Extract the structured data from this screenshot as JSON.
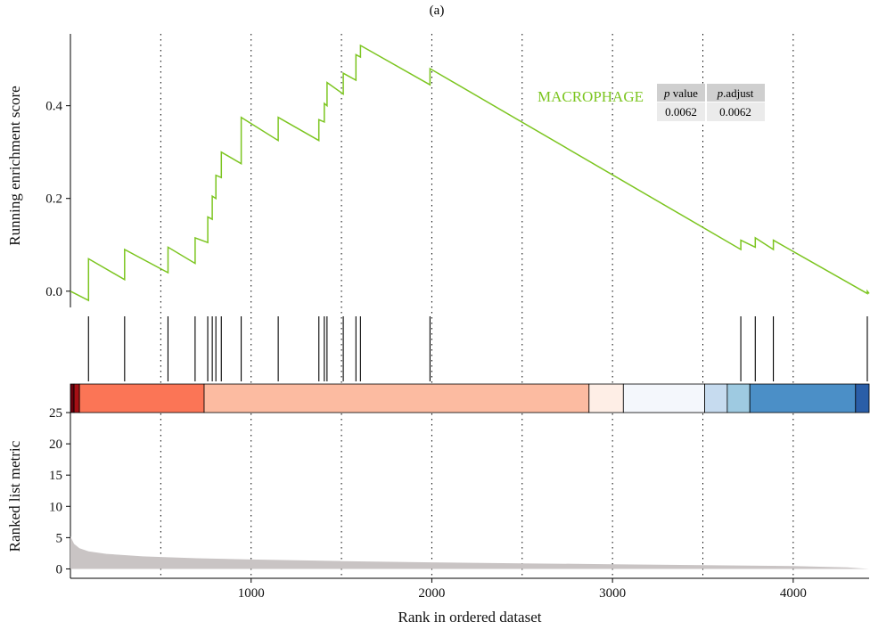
{
  "panel_label": "(a)",
  "colors": {
    "es_line": "#7CC520",
    "metric_area": "#C9C4C4",
    "heat_0": "#67000D",
    "heat_1": "#A50F15",
    "heat_2": "#FB7556",
    "heat_3": "#FCBBA1",
    "heat_4": "#FEEEE6",
    "heat_5": "#F4F7FC",
    "heat_6": "#C6DBEF",
    "heat_7": "#9ECAE1",
    "heat_8": "#4B8FC7",
    "heat_9": "#2A5EA8"
  },
  "chart_data": [
    {
      "type": "line",
      "ylabel": "Running enrichment score",
      "ylim": [
        -0.035,
        0.555
      ],
      "yticks": [
        0.0,
        0.2,
        0.4
      ],
      "ytick_labels": [
        "0.0",
        "0.2",
        "0.4"
      ],
      "xlim": [
        0,
        4420
      ],
      "vertical_dotted_lines_at": [
        500,
        1000,
        1500,
        2000,
        2500,
        3000,
        3500,
        4000
      ],
      "series": [
        {
          "name": "MACROPHAGE",
          "x": [
            0,
            100,
            100,
            300,
            300,
            540,
            540,
            690,
            690,
            760,
            760,
            785,
            785,
            805,
            805,
            835,
            835,
            945,
            945,
            1150,
            1150,
            1375,
            1375,
            1405,
            1405,
            1420,
            1420,
            1510,
            1510,
            1580,
            1580,
            1605,
            1605,
            1990,
            1990,
            3710,
            3710,
            3790,
            3790,
            3890,
            3890,
            4410,
            4410,
            4420
          ],
          "y": [
            0.0,
            -0.02,
            0.07,
            0.025,
            0.09,
            0.04,
            0.095,
            0.06,
            0.115,
            0.105,
            0.16,
            0.155,
            0.205,
            0.2,
            0.25,
            0.245,
            0.3,
            0.275,
            0.375,
            0.325,
            0.375,
            0.325,
            0.37,
            0.365,
            0.405,
            0.4,
            0.45,
            0.425,
            0.47,
            0.455,
            0.51,
            0.505,
            0.53,
            0.445,
            0.48,
            0.09,
            0.11,
            0.095,
            0.115,
            0.09,
            0.11,
            -0.005,
            0.0,
            -0.005
          ]
        }
      ],
      "gene_set_label": "MACROPHAGE",
      "stats_table": {
        "headers": [
          "p value",
          "p.adjust"
        ],
        "header_italic_prefix": "p",
        "values": [
          "0.0062",
          "0.0062"
        ]
      }
    },
    {
      "type": "rug",
      "description_hit_positions": "gene-set hit ranks",
      "hits": [
        100,
        300,
        540,
        690,
        760,
        785,
        805,
        835,
        945,
        1150,
        1375,
        1405,
        1420,
        1510,
        1580,
        1605,
        1990,
        3710,
        3790,
        3890,
        4410
      ]
    },
    {
      "type": "heatmap",
      "segments": [
        {
          "from": 0,
          "to": 20,
          "color_key": "heat_0"
        },
        {
          "from": 20,
          "to": 50,
          "color_key": "heat_1"
        },
        {
          "from": 50,
          "to": 740,
          "color_key": "heat_2"
        },
        {
          "from": 740,
          "to": 2870,
          "color_key": "heat_3"
        },
        {
          "from": 2870,
          "to": 3060,
          "color_key": "heat_4"
        },
        {
          "from": 3060,
          "to": 3510,
          "color_key": "heat_5"
        },
        {
          "from": 3510,
          "to": 3635,
          "color_key": "heat_6"
        },
        {
          "from": 3635,
          "to": 3760,
          "color_key": "heat_7"
        },
        {
          "from": 3760,
          "to": 4345,
          "color_key": "heat_8"
        },
        {
          "from": 4345,
          "to": 4420,
          "color_key": "heat_9"
        }
      ]
    },
    {
      "type": "area",
      "xlabel": "Rank in ordered dataset",
      "ylabel": "Ranked list metric",
      "xlim": [
        0,
        4420
      ],
      "ylim": [
        -1.5,
        25
      ],
      "xticks": [
        1000,
        2000,
        3000,
        4000
      ],
      "xtick_labels": [
        "1000",
        "2000",
        "3000",
        "4000"
      ],
      "yticks": [
        0,
        5,
        10,
        15,
        20,
        25
      ],
      "ytick_labels": [
        "0",
        "5",
        "10",
        "15",
        "20",
        "25"
      ],
      "x": [
        0,
        20,
        50,
        100,
        200,
        400,
        700,
        1000,
        1500,
        2000,
        2500,
        3000,
        3500,
        4000,
        4300,
        4420
      ],
      "y": [
        5.2,
        4.0,
        3.3,
        2.8,
        2.4,
        2.0,
        1.7,
        1.5,
        1.25,
        1.05,
        0.9,
        0.75,
        0.6,
        0.45,
        0.25,
        0.0
      ]
    }
  ]
}
